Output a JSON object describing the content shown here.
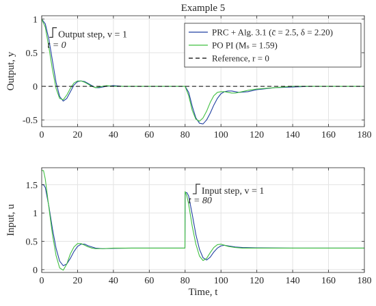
{
  "chart_data": [
    {
      "type": "line",
      "title": "Example 5",
      "xlabel": "",
      "ylabel": "Output, y",
      "xlim": [
        0,
        180
      ],
      "ylim": [
        -0.6,
        1.05
      ],
      "xticks": [
        0,
        20,
        40,
        60,
        80,
        100,
        120,
        140,
        160,
        180
      ],
      "yticks": [
        -0.5,
        0,
        0.5,
        1
      ],
      "ytick_labels": [
        "-0.5",
        "0",
        "0.5",
        "1"
      ],
      "grid": true,
      "legend_position": "top-right",
      "series": [
        {
          "name": "PRC + Alg. 3.1 (c̄ = 2.5, δ = 2.20)",
          "color": "#1f3fa0",
          "style": "solid",
          "x": [
            0,
            2,
            4,
            6,
            8,
            10,
            12,
            14,
            16,
            18,
            20,
            22,
            24,
            26,
            28,
            30,
            32,
            34,
            36,
            40,
            45,
            50,
            60,
            70,
            79.9,
            80,
            82,
            84,
            86,
            88,
            90,
            92,
            94,
            96,
            98,
            100,
            102,
            104,
            106,
            108,
            110,
            115,
            120,
            130,
            140,
            150,
            180
          ],
          "y": [
            1.0,
            0.93,
            0.7,
            0.38,
            0.06,
            -0.15,
            -0.22,
            -0.18,
            -0.08,
            0.02,
            0.07,
            0.08,
            0.07,
            0.04,
            0.01,
            -0.02,
            -0.02,
            -0.01,
            0.0,
            0.01,
            0.0,
            0.0,
            0.0,
            0.0,
            0.0,
            0.0,
            -0.09,
            -0.3,
            -0.47,
            -0.55,
            -0.56,
            -0.5,
            -0.4,
            -0.28,
            -0.18,
            -0.11,
            -0.08,
            -0.07,
            -0.07,
            -0.08,
            -0.09,
            -0.08,
            -0.05,
            -0.02,
            -0.01,
            0.0,
            0.0
          ]
        },
        {
          "name": "PO PI (Mₛ = 1.59)",
          "color": "#3fbf3f",
          "style": "solid",
          "x": [
            0,
            2,
            4,
            6,
            8,
            10,
            12,
            14,
            16,
            18,
            20,
            22,
            24,
            26,
            28,
            30,
            32,
            34,
            36,
            40,
            45,
            50,
            60,
            70,
            79.9,
            80,
            82,
            84,
            86,
            88,
            90,
            92,
            94,
            96,
            98,
            100,
            102,
            104,
            106,
            108,
            110,
            115,
            120,
            130,
            140,
            150,
            180
          ],
          "y": [
            1.0,
            0.88,
            0.58,
            0.25,
            -0.03,
            -0.18,
            -0.2,
            -0.13,
            -0.03,
            0.05,
            0.08,
            0.08,
            0.06,
            0.03,
            0.0,
            -0.02,
            -0.01,
            0.0,
            0.01,
            0.0,
            0.0,
            0.0,
            0.0,
            0.0,
            0.0,
            0.0,
            -0.14,
            -0.36,
            -0.49,
            -0.52,
            -0.47,
            -0.37,
            -0.24,
            -0.14,
            -0.09,
            -0.08,
            -0.08,
            -0.09,
            -0.1,
            -0.1,
            -0.09,
            -0.06,
            -0.04,
            -0.02,
            0.0,
            0.0,
            0.0
          ]
        },
        {
          "name": "Reference, r = 0",
          "color": "#000000",
          "style": "dashed",
          "x": [
            0,
            180
          ],
          "y": [
            0,
            0
          ]
        }
      ],
      "annotations": [
        {
          "text": "Output step, v = 1",
          "x": 5,
          "y": 0.78
        },
        {
          "text": "t = 0",
          "x": 0,
          "y": 0.62
        }
      ]
    },
    {
      "type": "line",
      "title": "",
      "xlabel": "Time, t",
      "ylabel": "Input, u",
      "xlim": [
        0,
        180
      ],
      "ylim": [
        -0.05,
        1.8
      ],
      "xticks": [
        0,
        20,
        40,
        60,
        80,
        100,
        120,
        140,
        160,
        180
      ],
      "yticks": [
        0,
        0.5,
        1,
        1.5
      ],
      "ytick_labels": [
        "0",
        "0.5",
        "1",
        "1.5"
      ],
      "grid": true,
      "series": [
        {
          "name": "PRC + Alg. 3.1",
          "color": "#1f3fa0",
          "style": "solid",
          "x": [
            0,
            1,
            2,
            4,
            6,
            8,
            10,
            12,
            14,
            16,
            18,
            20,
            22,
            24,
            26,
            28,
            30,
            34,
            40,
            50,
            60,
            70,
            79.9,
            80,
            81,
            82,
            84,
            86,
            88,
            90,
            92,
            94,
            96,
            98,
            100,
            102,
            104,
            108,
            112,
            120,
            140,
            160,
            180
          ],
          "y": [
            1.5,
            1.5,
            1.45,
            1.12,
            0.72,
            0.38,
            0.15,
            0.07,
            0.1,
            0.2,
            0.32,
            0.41,
            0.45,
            0.45,
            0.42,
            0.4,
            0.38,
            0.37,
            0.375,
            0.38,
            0.38,
            0.38,
            0.38,
            1.36,
            1.36,
            1.3,
            0.97,
            0.62,
            0.36,
            0.21,
            0.17,
            0.22,
            0.31,
            0.38,
            0.42,
            0.43,
            0.42,
            0.4,
            0.39,
            0.385,
            0.38,
            0.38,
            0.38
          ]
        },
        {
          "name": "PO PI",
          "color": "#3fbf3f",
          "style": "solid",
          "x": [
            0,
            1,
            2,
            4,
            6,
            8,
            10,
            12,
            14,
            16,
            18,
            20,
            22,
            24,
            26,
            28,
            30,
            34,
            40,
            50,
            60,
            70,
            79.9,
            80,
            81,
            82,
            84,
            86,
            88,
            90,
            92,
            94,
            96,
            98,
            100,
            102,
            104,
            108,
            112,
            120,
            140,
            160,
            180
          ],
          "y": [
            1.75,
            1.75,
            1.6,
            1.1,
            0.62,
            0.25,
            0.03,
            -0.01,
            0.1,
            0.28,
            0.4,
            0.46,
            0.46,
            0.43,
            0.4,
            0.38,
            0.37,
            0.37,
            0.38,
            0.38,
            0.38,
            0.38,
            0.38,
            1.38,
            1.3,
            1.15,
            0.76,
            0.45,
            0.24,
            0.16,
            0.2,
            0.3,
            0.39,
            0.44,
            0.45,
            0.43,
            0.41,
            0.39,
            0.38,
            0.38,
            0.38,
            0.38,
            0.38
          ]
        }
      ],
      "annotations": [
        {
          "text": "Input step, v = 1",
          "x": 85,
          "y": 1.4
        },
        {
          "text": "t = 80",
          "x": 80,
          "y": 1.23
        }
      ]
    }
  ]
}
